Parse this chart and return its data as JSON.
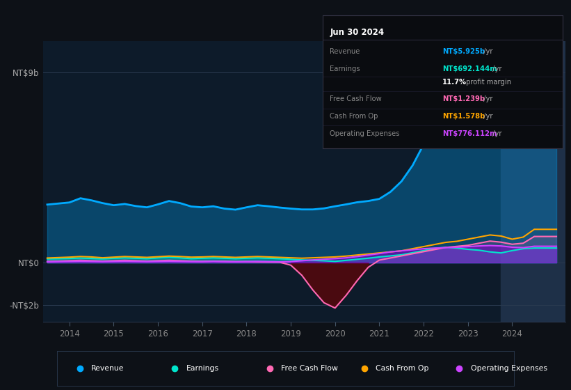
{
  "background_color": "#0d1117",
  "plot_bg_color": "#0d1b2a",
  "highlight_color": "#1e3048",
  "ytick_labels": [
    "NT$9b",
    "NT$0",
    "-NT$2b"
  ],
  "ytick_values": [
    9000000000,
    0,
    -2000000000
  ],
  "ylim": [
    -2800000000,
    10500000000
  ],
  "xlim": [
    2013.4,
    2025.2
  ],
  "xtick_labels": [
    "2014",
    "2015",
    "2016",
    "2017",
    "2018",
    "2019",
    "2020",
    "2021",
    "2022",
    "2023",
    "2024"
  ],
  "xtick_values": [
    2014,
    2015,
    2016,
    2017,
    2018,
    2019,
    2020,
    2021,
    2022,
    2023,
    2024
  ],
  "legend": [
    {
      "label": "Revenue",
      "color": "#00aaff"
    },
    {
      "label": "Earnings",
      "color": "#00e5cc"
    },
    {
      "label": "Free Cash Flow",
      "color": "#ff69b4"
    },
    {
      "label": "Cash From Op",
      "color": "#ffa500"
    },
    {
      "label": "Operating Expenses",
      "color": "#cc44ff"
    }
  ],
  "tooltip": {
    "date": "Jun 30 2024",
    "rows": [
      {
        "label": "Revenue",
        "value": "NT$5.925b",
        "suffix": " /yr",
        "value_color": "#00aaff"
      },
      {
        "label": "Earnings",
        "value": "NT$692.144m",
        "suffix": " /yr",
        "value_color": "#00e5cc"
      },
      {
        "label": "",
        "value": "11.7%",
        "suffix": " profit margin",
        "value_color": "#ffffff"
      },
      {
        "label": "Free Cash Flow",
        "value": "NT$1.239b",
        "suffix": " /yr",
        "value_color": "#ff69b4"
      },
      {
        "label": "Cash From Op",
        "value": "NT$1.578b",
        "suffix": " /yr",
        "value_color": "#ffa500"
      },
      {
        "label": "Operating Expenses",
        "value": "NT$776.112m",
        "suffix": " /yr",
        "value_color": "#cc44ff"
      }
    ]
  },
  "series": {
    "x": [
      2013.5,
      2013.75,
      2014.0,
      2014.25,
      2014.5,
      2014.75,
      2015.0,
      2015.25,
      2015.5,
      2015.75,
      2016.0,
      2016.25,
      2016.5,
      2016.75,
      2017.0,
      2017.25,
      2017.5,
      2017.75,
      2018.0,
      2018.25,
      2018.5,
      2018.75,
      2019.0,
      2019.25,
      2019.5,
      2019.75,
      2020.0,
      2020.25,
      2020.5,
      2020.75,
      2021.0,
      2021.25,
      2021.5,
      2021.75,
      2022.0,
      2022.25,
      2022.5,
      2022.75,
      2023.0,
      2023.25,
      2023.5,
      2023.75,
      2024.0,
      2024.25,
      2024.5,
      2024.75,
      2025.0
    ],
    "revenue": [
      2750000000.0,
      2800000000.0,
      2850000000.0,
      3050000000.0,
      2950000000.0,
      2820000000.0,
      2720000000.0,
      2780000000.0,
      2680000000.0,
      2620000000.0,
      2760000000.0,
      2920000000.0,
      2820000000.0,
      2660000000.0,
      2620000000.0,
      2670000000.0,
      2560000000.0,
      2510000000.0,
      2620000000.0,
      2720000000.0,
      2670000000.0,
      2610000000.0,
      2560000000.0,
      2520000000.0,
      2520000000.0,
      2570000000.0,
      2670000000.0,
      2760000000.0,
      2860000000.0,
      2920000000.0,
      3020000000.0,
      3350000000.0,
      3850000000.0,
      4600000000.0,
      5600000000.0,
      7100000000.0,
      8100000000.0,
      8550000000.0,
      8850000000.0,
      8650000000.0,
      7850000000.0,
      7250000000.0,
      6850000000.0,
      6500000000.0,
      5930000000.0,
      5930000000.0,
      5930000000.0
    ],
    "earnings": [
      180000000.0,
      190000000.0,
      200000000.0,
      220000000.0,
      200000000.0,
      180000000.0,
      210000000.0,
      230000000.0,
      210000000.0,
      190000000.0,
      230000000.0,
      260000000.0,
      230000000.0,
      190000000.0,
      210000000.0,
      230000000.0,
      210000000.0,
      190000000.0,
      210000000.0,
      230000000.0,
      210000000.0,
      190000000.0,
      160000000.0,
      130000000.0,
      110000000.0,
      90000000.0,
      60000000.0,
      110000000.0,
      160000000.0,
      210000000.0,
      270000000.0,
      320000000.0,
      370000000.0,
      470000000.0,
      570000000.0,
      670000000.0,
      730000000.0,
      690000000.0,
      630000000.0,
      590000000.0,
      510000000.0,
      460000000.0,
      570000000.0,
      660000000.0,
      692000000.0,
      692000000.0,
      692000000.0
    ],
    "free_cash_flow": [
      60000000.0,
      70000000.0,
      90000000.0,
      110000000.0,
      90000000.0,
      70000000.0,
      90000000.0,
      110000000.0,
      90000000.0,
      70000000.0,
      90000000.0,
      110000000.0,
      90000000.0,
      70000000.0,
      60000000.0,
      70000000.0,
      60000000.0,
      50000000.0,
      50000000.0,
      40000000.0,
      30000000.0,
      20000000.0,
      -120000000.0,
      -600000000.0,
      -1300000000.0,
      -1900000000.0,
      -2150000000.0,
      -1550000000.0,
      -850000000.0,
      -220000000.0,
      120000000.0,
      220000000.0,
      320000000.0,
      420000000.0,
      520000000.0,
      620000000.0,
      720000000.0,
      770000000.0,
      820000000.0,
      920000000.0,
      1020000000.0,
      970000000.0,
      870000000.0,
      920000000.0,
      1239000000.0,
      1239000000.0,
      1239000000.0
    ],
    "cash_from_op": [
      220000000.0,
      240000000.0,
      260000000.0,
      290000000.0,
      270000000.0,
      230000000.0,
      260000000.0,
      290000000.0,
      270000000.0,
      250000000.0,
      280000000.0,
      310000000.0,
      290000000.0,
      260000000.0,
      270000000.0,
      290000000.0,
      270000000.0,
      250000000.0,
      270000000.0,
      290000000.0,
      270000000.0,
      250000000.0,
      230000000.0,
      210000000.0,
      230000000.0,
      250000000.0,
      270000000.0,
      310000000.0,
      360000000.0,
      410000000.0,
      460000000.0,
      510000000.0,
      560000000.0,
      660000000.0,
      760000000.0,
      860000000.0,
      960000000.0,
      1010000000.0,
      1110000000.0,
      1210000000.0,
      1310000000.0,
      1260000000.0,
      1110000000.0,
      1210000000.0,
      1578000000.0,
      1578000000.0,
      1578000000.0
    ],
    "operating_expenses": [
      40000000.0,
      50000000.0,
      60000000.0,
      70000000.0,
      60000000.0,
      50000000.0,
      60000000.0,
      70000000.0,
      60000000.0,
      50000000.0,
      60000000.0,
      70000000.0,
      60000000.0,
      50000000.0,
      50000000.0,
      60000000.0,
      50000000.0,
      40000000.0,
      50000000.0,
      60000000.0,
      50000000.0,
      40000000.0,
      50000000.0,
      90000000.0,
      130000000.0,
      160000000.0,
      190000000.0,
      230000000.0,
      290000000.0,
      360000000.0,
      430000000.0,
      510000000.0,
      560000000.0,
      610000000.0,
      660000000.0,
      690000000.0,
      710000000.0,
      730000000.0,
      760000000.0,
      790000000.0,
      810000000.0,
      790000000.0,
      730000000.0,
      710000000.0,
      776000000.0,
      776000000.0,
      776000000.0
    ]
  },
  "highlight_x_start": 2023.75,
  "highlight_x_end": 2025.2
}
